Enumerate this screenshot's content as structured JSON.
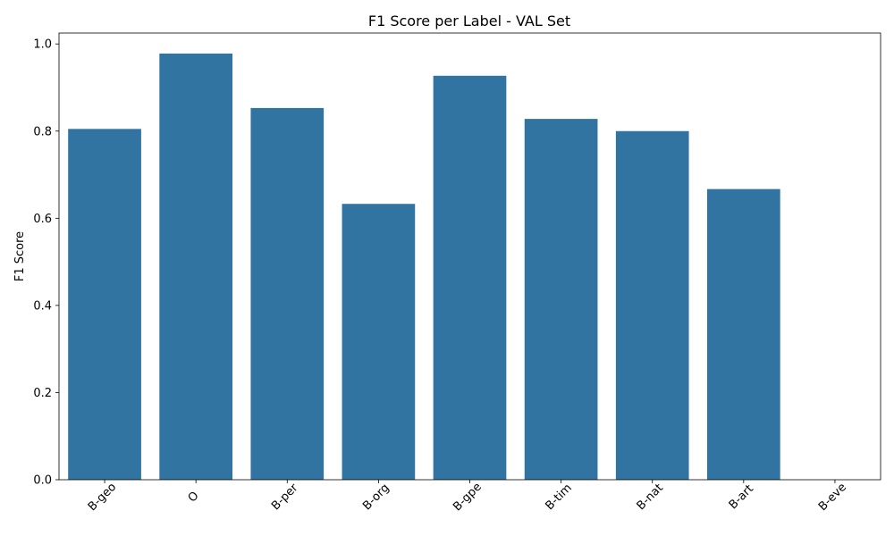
{
  "chart_data": {
    "type": "bar",
    "title": "F1 Score per Label - VAL Set",
    "xlabel": "",
    "ylabel": "F1 Score",
    "categories": [
      "B-geo",
      "O",
      "B-per",
      "B-org",
      "B-gpe",
      "B-tim",
      "B-nat",
      "B-art",
      "B-eve"
    ],
    "values": [
      0.805,
      0.978,
      0.853,
      0.633,
      0.927,
      0.828,
      0.8,
      0.667,
      0.0
    ],
    "ylim": [
      0,
      1.025
    ],
    "yticks": [
      "0.0",
      "0.2",
      "0.4",
      "0.6",
      "0.8",
      "1.0"
    ],
    "grid": false,
    "legend": "none",
    "bar_color": "#3274a1"
  }
}
